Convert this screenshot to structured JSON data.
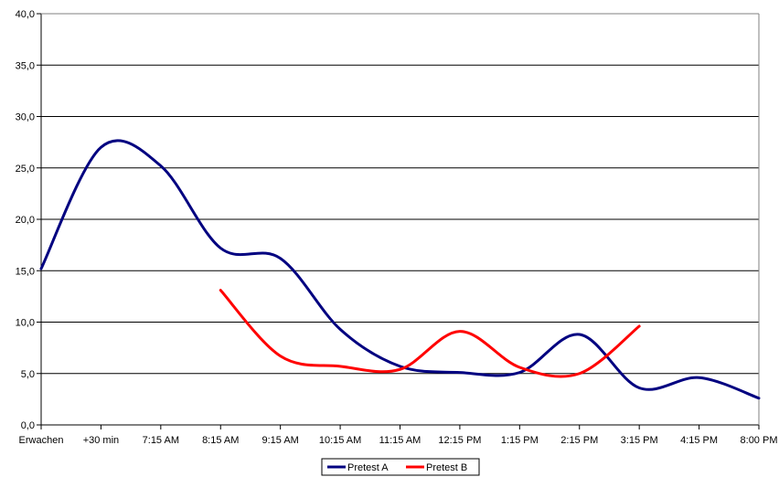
{
  "chart_data": {
    "type": "line",
    "title": "",
    "xlabel": "",
    "ylabel": "",
    "categories": [
      "Erwachen",
      "+30 min",
      "7:15 AM",
      "8:15 AM",
      "9:15 AM",
      "10:15 AM",
      "11:15 AM",
      "12:15 PM",
      "1:15 PM",
      "2:15 PM",
      "3:15 PM",
      "4:15 PM",
      "8:00 PM"
    ],
    "ylim": [
      0,
      40
    ],
    "yticks": [
      "0,0",
      "5,0",
      "10,0",
      "15,0",
      "20,0",
      "25,0",
      "30,0",
      "35,0",
      "40,0"
    ],
    "grid": "horizontal",
    "smooth": true,
    "legend_position": "bottom",
    "series": [
      {
        "name": "Pretest A",
        "color": "#000080",
        "values": [
          15.2,
          27.0,
          25.2,
          17.2,
          16.2,
          9.3,
          5.7,
          5.1,
          5.1,
          8.8,
          3.6,
          4.6,
          2.6
        ]
      },
      {
        "name": "Pretest B",
        "color": "#ff0000",
        "values": [
          null,
          null,
          null,
          13.1,
          6.7,
          5.7,
          5.4,
          9.1,
          5.6,
          5.0,
          9.6,
          null,
          null
        ]
      }
    ]
  }
}
